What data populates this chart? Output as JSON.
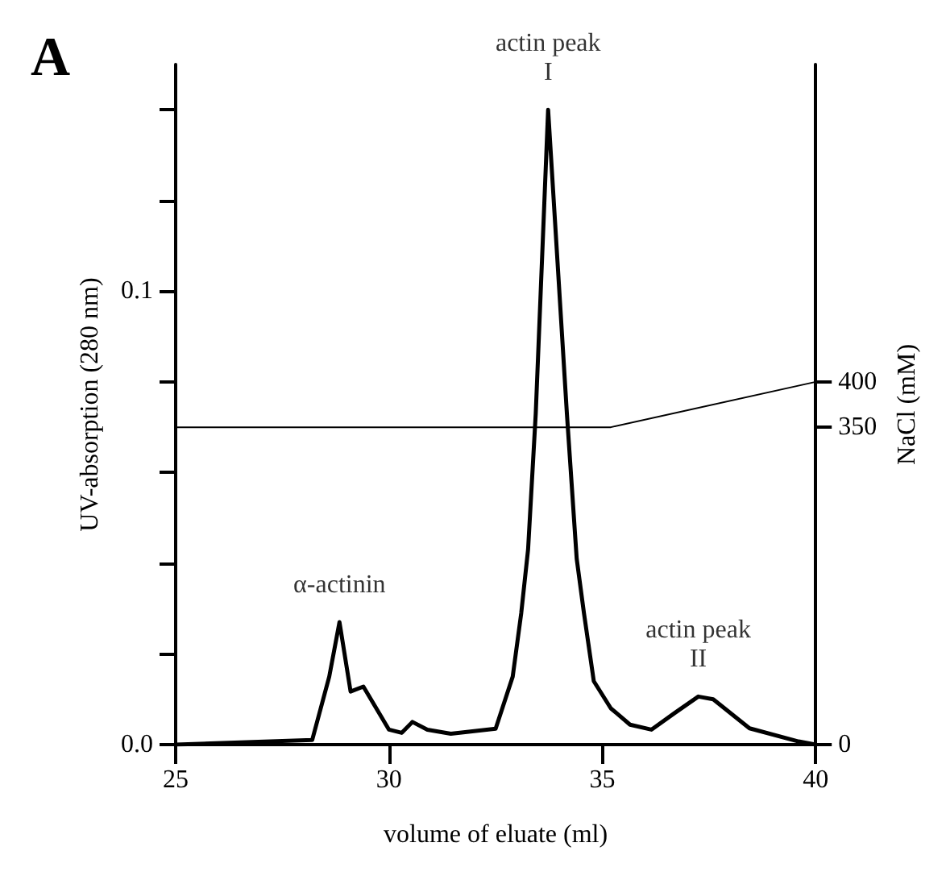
{
  "chart_data": {
    "type": "line",
    "title": "A",
    "xlabel": "volume of eluate (ml)",
    "ylabel": "UV-absorption (280 nm)",
    "y2label": "NaCl (mM)",
    "series": [
      {
        "color": "#000000",
        "x": [
          25,
          28.2,
          28.6,
          28.84,
          29.1,
          29.4,
          30.0,
          30.3,
          30.55,
          30.9,
          31.45,
          32.5,
          32.9,
          33.1,
          33.26,
          33.44,
          33.73,
          34.17,
          34.4,
          34.57,
          34.8,
          35.2,
          35.65,
          36.15,
          36.7,
          37.25,
          37.6,
          38.45,
          39.6,
          40
        ],
        "values": [
          0,
          0.001,
          0.015,
          0.027,
          0.0117,
          0.0128,
          0.0033,
          0.0026,
          0.005,
          0.0033,
          0.0024,
          0.0035,
          0.015,
          0.029,
          0.043,
          0.073,
          0.14,
          0.073,
          0.041,
          0.029,
          0.014,
          0.008,
          0.0044,
          0.0033,
          0.007,
          0.0106,
          0.01,
          0.0036,
          0.0007,
          0
        ]
      },
      {
        "color": "#000000",
        "axis": "y2",
        "x": [
          25,
          35.2,
          40
        ],
        "values": [
          350,
          350,
          400
        ]
      }
    ],
    "annotations": [
      {
        "text": "α-actinin",
        "x": 28.84,
        "y": 0.027
      },
      {
        "text": "actin peak\nI",
        "x": 33.73,
        "y": 0.14
      },
      {
        "text": "actin peak\nII",
        "x": 37.25,
        "y": 0.0106
      }
    ],
    "xlim": [
      25,
      40
    ],
    "xticks": [
      25,
      30,
      35,
      40
    ],
    "ylim": [
      0,
      0.15
    ],
    "yticks": [
      {
        "value": 0,
        "label": "0.0"
      },
      {
        "value": 0.02,
        "label": null
      },
      {
        "value": 0.04,
        "label": null
      },
      {
        "value": 0.06,
        "label": null
      },
      {
        "value": 0.08,
        "label": null
      },
      {
        "value": 0.1,
        "label": "0.1"
      },
      {
        "value": 0.12,
        "label": null
      },
      {
        "value": 0.14,
        "label": null
      }
    ],
    "y2lim": [
      0,
      750
    ],
    "y2ticks": [
      0,
      350,
      400
    ],
    "grid": false,
    "marker": "none",
    "line_style": "solid"
  }
}
